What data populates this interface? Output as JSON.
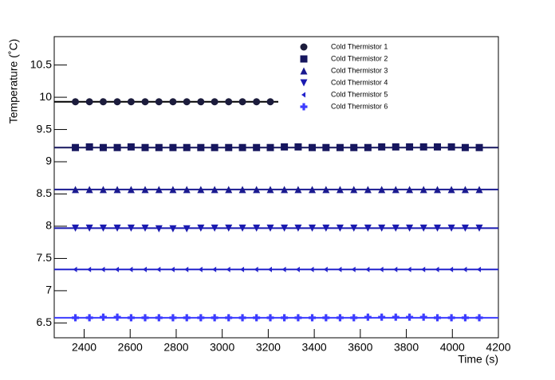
{
  "chart_data": {
    "type": "scatter",
    "x_label": "Time (s)",
    "y_label": "Temperature (˚C)",
    "xlim": [
      2270,
      4200
    ],
    "xticks": [
      2400,
      2600,
      2800,
      3000,
      3200,
      3400,
      3600,
      3800,
      4000,
      4200
    ],
    "ylim": [
      6.27,
      10.94
    ],
    "yticks": [
      6.5,
      7,
      7.5,
      8,
      8.5,
      9,
      9.5,
      10,
      10.5
    ],
    "x": [
      2362,
      2423,
      2483,
      2544,
      2604,
      2665,
      2725,
      2786,
      2846,
      2907,
      2967,
      3028,
      3088,
      3149,
      3209,
      3270,
      3330,
      3391,
      3451,
      3512,
      3572,
      3633,
      3693,
      3754,
      3814,
      3875,
      3935,
      3996,
      4056,
      4117
    ],
    "series": [
      {
        "name": "Cold Thermistor 1",
        "color": "#1c1c3c",
        "marker": "circle",
        "fit": 9.93,
        "values": [
          9.93,
          9.93,
          9.93,
          9.93,
          9.93,
          9.93,
          9.93,
          9.93,
          9.93,
          9.93,
          9.93,
          9.93,
          9.93,
          9.93,
          9.93,
          null,
          null,
          null,
          null,
          null,
          null,
          null,
          null,
          null,
          null,
          null,
          null,
          null,
          null,
          null
        ]
      },
      {
        "name": "Cold Thermistor 2",
        "color": "#16165e",
        "marker": "square",
        "fit": 9.22,
        "values": [
          9.22,
          9.23,
          9.22,
          9.22,
          9.23,
          9.22,
          9.22,
          9.22,
          9.22,
          9.22,
          9.22,
          9.22,
          9.22,
          9.22,
          9.22,
          9.23,
          9.23,
          9.22,
          9.22,
          9.22,
          9.22,
          9.22,
          9.23,
          9.23,
          9.23,
          9.23,
          9.23,
          9.23,
          9.22,
          9.22
        ]
      },
      {
        "name": "Cold Thermistor 3",
        "color": "#1a1a90",
        "marker": "up",
        "fit": 8.57,
        "values": [
          8.57,
          8.57,
          8.57,
          8.57,
          8.57,
          8.57,
          8.57,
          8.57,
          8.57,
          8.57,
          8.57,
          8.57,
          8.57,
          8.57,
          8.57,
          8.57,
          8.57,
          8.57,
          8.57,
          8.57,
          8.57,
          8.57,
          8.57,
          8.57,
          8.57,
          8.57,
          8.57,
          8.57,
          8.57,
          8.57
        ]
      },
      {
        "name": "Cold Thermistor 4",
        "color": "#1a1ab0",
        "marker": "down",
        "fit": 7.97,
        "values": [
          7.97,
          7.97,
          7.97,
          7.97,
          7.97,
          7.97,
          7.96,
          7.96,
          7.96,
          7.97,
          7.97,
          7.97,
          7.97,
          7.97,
          7.97,
          7.97,
          7.97,
          7.97,
          7.97,
          7.97,
          7.97,
          7.97,
          7.97,
          7.97,
          7.97,
          7.97,
          7.97,
          7.97,
          7.97,
          7.97
        ]
      },
      {
        "name": "Cold Thermistor 5",
        "color": "#2222cc",
        "marker": "left",
        "fit": 7.33,
        "values": [
          7.33,
          7.33,
          7.33,
          7.33,
          7.33,
          7.33,
          7.33,
          7.33,
          7.33,
          7.33,
          7.33,
          7.33,
          7.33,
          7.33,
          7.33,
          7.33,
          7.33,
          7.33,
          7.33,
          7.33,
          7.33,
          7.33,
          7.33,
          7.33,
          7.33,
          7.33,
          7.33,
          7.33,
          7.33,
          7.33
        ]
      },
      {
        "name": "Cold Thermistor 6",
        "color": "#3b3bff",
        "marker": "plus",
        "fit": 6.58,
        "values": [
          6.58,
          6.58,
          6.59,
          6.59,
          6.58,
          6.58,
          6.58,
          6.58,
          6.58,
          6.58,
          6.58,
          6.58,
          6.58,
          6.58,
          6.58,
          6.58,
          6.58,
          6.58,
          6.58,
          6.58,
          6.58,
          6.59,
          6.59,
          6.59,
          6.59,
          6.59,
          6.58,
          6.58,
          6.58,
          6.58
        ]
      }
    ]
  }
}
